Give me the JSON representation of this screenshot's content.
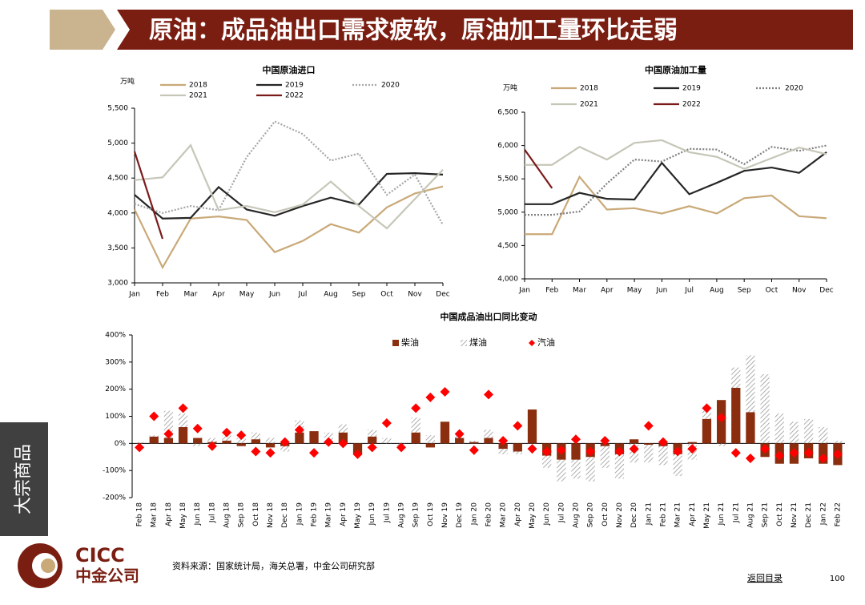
{
  "header": {
    "title": "原油：成品油出口需求疲软，原油加工量环比走弱"
  },
  "side_tab": "大宗商品",
  "logo": {
    "en": "CICC",
    "cn": "中金公司"
  },
  "footer": {
    "source": "资料来源：国家统计局，海关总署，中金公司研究部",
    "back_link": "返回目录",
    "page_number": "100"
  },
  "chart_data": [
    {
      "type": "line",
      "title": "中国原油进口",
      "y_label": "万吨",
      "categories": [
        "Jan",
        "Feb",
        "Mar",
        "Apr",
        "May",
        "Jun",
        "Jul",
        "Aug",
        "Sep",
        "Oct",
        "Nov",
        "Dec"
      ],
      "ylim": [
        3000,
        5500
      ],
      "yticks": [
        {
          "value": 3000,
          "label": "3,000"
        },
        {
          "value": 3500,
          "label": "3,500"
        },
        {
          "value": 4000,
          "label": "4,000"
        },
        {
          "value": 4500,
          "label": "4,500"
        },
        {
          "value": 5000,
          "label": "5,000"
        },
        {
          "value": 5500,
          "label": "5,500"
        }
      ],
      "grid": false,
      "series": [
        {
          "name": "2018",
          "color": "#c9a978",
          "values": [
            4050,
            3220,
            3920,
            3950,
            3900,
            3440,
            3600,
            3840,
            3720,
            4080,
            4280,
            4380
          ]
        },
        {
          "name": "2019",
          "color": "#262626",
          "values": [
            4260,
            3920,
            3930,
            4370,
            4050,
            3960,
            4100,
            4220,
            4120,
            4560,
            4570,
            4550
          ]
        },
        {
          "name": "2020",
          "color": "#a6a6a6",
          "dash": true,
          "values": [
            4130,
            4000,
            4100,
            4040,
            4800,
            5310,
            5130,
            4750,
            4850,
            4260,
            4550,
            3830
          ]
        },
        {
          "name": "2021",
          "color": "#c6c6b8",
          "values": [
            4470,
            4510,
            4970,
            4040,
            4100,
            4010,
            4120,
            4450,
            4100,
            3780,
            4200,
            4620
          ]
        },
        {
          "name": "2022",
          "color": "#7b1a1a",
          "values": [
            4880,
            3630,
            null,
            null,
            null,
            null,
            null,
            null,
            null,
            null,
            null,
            null
          ]
        }
      ]
    },
    {
      "type": "line",
      "title": "中国原油加工量",
      "y_label": "万吨",
      "categories": [
        "Jan",
        "Feb",
        "Mar",
        "Apr",
        "May",
        "Jun",
        "Jul",
        "Aug",
        "Sep",
        "Oct",
        "Nov",
        "Dec"
      ],
      "ylim": [
        4000,
        6500
      ],
      "yticks": [
        {
          "value": 4000,
          "label": "4,000"
        },
        {
          "value": 4500,
          "label": "4,500"
        },
        {
          "value": 5000,
          "label": "5,000"
        },
        {
          "value": 5500,
          "label": "5,500"
        },
        {
          "value": 6000,
          "label": "6,000"
        },
        {
          "value": 6500,
          "label": "6,500"
        }
      ],
      "grid": false,
      "series": [
        {
          "name": "2018",
          "color": "#c9a978",
          "values": [
            4670,
            4670,
            5530,
            5040,
            5060,
            4980,
            5090,
            4980,
            5210,
            5250,
            4940,
            4910
          ]
        },
        {
          "name": "2019",
          "color": "#262626",
          "values": [
            5120,
            5120,
            5290,
            5200,
            5190,
            5740,
            5270,
            5440,
            5620,
            5670,
            5590,
            5900
          ]
        },
        {
          "name": "2020",
          "color": "#7f7f7f",
          "dash": true,
          "values": [
            4960,
            4960,
            5010,
            5430,
            5790,
            5760,
            5950,
            5940,
            5720,
            5980,
            5920,
            6000
          ]
        },
        {
          "name": "2021",
          "color": "#c6c6b8",
          "values": [
            5710,
            5710,
            5980,
            5790,
            6040,
            6080,
            5900,
            5830,
            5650,
            5810,
            5970,
            5870
          ]
        },
        {
          "name": "2022",
          "color": "#7b1a1a",
          "values": [
            5940,
            5360,
            null,
            null,
            null,
            null,
            null,
            null,
            null,
            null,
            null,
            null
          ]
        }
      ]
    },
    {
      "type": "bar",
      "title": "中国成品油出口同比变动",
      "categories": [
        "Feb 18",
        "Mar 18",
        "Apr 18",
        "May 18",
        "Jun 18",
        "Jul 18",
        "Aug 18",
        "Sep 18",
        "Oct 18",
        "Nov 18",
        "Dec 18",
        "Jan 19",
        "Feb 19",
        "Mar 19",
        "Apr 19",
        "May 19",
        "Jun 19",
        "Jul 19",
        "Aug 19",
        "Sep 19",
        "Oct 19",
        "Nov 19",
        "Dec 19",
        "Jan 20",
        "Feb 20",
        "Mar 20",
        "Apr 20",
        "May 20",
        "Jun 20",
        "Jul 20",
        "Aug 20",
        "Sep 20",
        "Oct 20",
        "Nov 20",
        "Dec 20",
        "Jan 21",
        "Feb 21",
        "Mar 21",
        "Apr 21",
        "May 21",
        "Jun 21",
        "Jul 21",
        "Aug 21",
        "Sep 21",
        "Oct 21",
        "Nov 21",
        "Dec 21",
        "Jan 22",
        "Feb 22"
      ],
      "ylim": [
        -200,
        400
      ],
      "yticks": [
        {
          "value": -200,
          "label": "-200%"
        },
        {
          "value": -100,
          "label": "-100%"
        },
        {
          "value": 0,
          "label": "0%"
        },
        {
          "value": 100,
          "label": "100%"
        },
        {
          "value": 200,
          "label": "200%"
        },
        {
          "value": 300,
          "label": "300%"
        },
        {
          "value": 400,
          "label": "400%"
        }
      ],
      "grid": false,
      "series": [
        {
          "name": "柴油",
          "color": "#8b2e0f",
          "values": [
            0,
            25,
            20,
            60,
            20,
            5,
            10,
            -10,
            15,
            -15,
            -10,
            40,
            45,
            5,
            40,
            -40,
            25,
            0,
            0,
            40,
            -15,
            80,
            20,
            5,
            20,
            -20,
            -30,
            125,
            -45,
            -60,
            -60,
            -50,
            -10,
            -40,
            15,
            -5,
            -10,
            -40,
            5,
            90,
            160,
            205,
            115,
            -50,
            -75,
            -75,
            -55,
            -75,
            -80
          ]
        },
        {
          "name": "煤油",
          "color": "#9a9a9a",
          "hatch": true,
          "values": [
            5,
            30,
            120,
            110,
            -10,
            20,
            30,
            20,
            40,
            20,
            -30,
            85,
            40,
            40,
            70,
            -20,
            50,
            20,
            -10,
            95,
            30,
            70,
            30,
            10,
            50,
            -40,
            -40,
            0,
            -90,
            -140,
            -130,
            -140,
            -90,
            -130,
            -70,
            -70,
            -80,
            -120,
            -60,
            120,
            -10,
            280,
            325,
            255,
            110,
            80,
            90,
            60,
            10
          ]
        },
        {
          "name": "汽油",
          "color": "#ff0000",
          "marker": "diamond",
          "values": [
            -15,
            100,
            35,
            130,
            55,
            -10,
            40,
            30,
            -30,
            -35,
            5,
            50,
            -35,
            5,
            0,
            -40,
            -15,
            75,
            -15,
            130,
            170,
            190,
            35,
            -25,
            180,
            10,
            65,
            -20,
            -30,
            -25,
            15,
            -30,
            10,
            -30,
            -20,
            65,
            5,
            -30,
            -20,
            130,
            95,
            -35,
            -55,
            -20,
            -45,
            -35,
            -35,
            -55,
            -40
          ]
        }
      ]
    }
  ]
}
